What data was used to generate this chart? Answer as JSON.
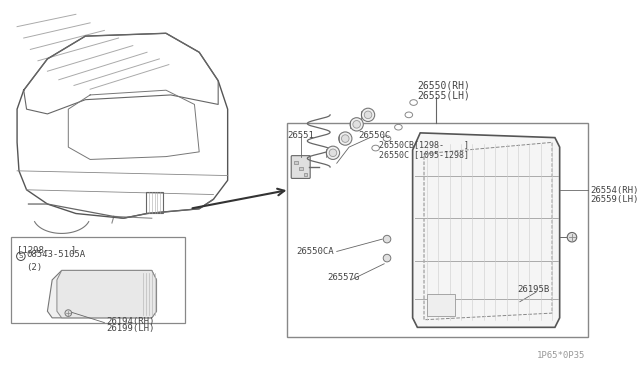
{
  "bg_color": "#ffffff",
  "diagram_id": "1P65*0P35",
  "tc": "#444444",
  "lc": "#666666",
  "labels": {
    "part_26550_rh": "26550(RH)",
    "part_26555_lh": "26555(LH)",
    "part_26551": "26551",
    "part_26550c": "26550C",
    "part_26550cb": "26550CB[1298-    ]",
    "part_26550c2": "26550C [1095-1298]",
    "part_26554_rh": "26554(RH)",
    "part_26559_lh": "26559(LH)",
    "part_26550ca": "26550CA",
    "part_26557g": "26557G",
    "part_26195b": "26195B",
    "box_label": "[1298-    ]",
    "screw_label": "08543-5105A",
    "screw_qty": "(2)",
    "part_26194_rh": "26194(RH)",
    "part_26199_lh": "26199(LH)"
  }
}
